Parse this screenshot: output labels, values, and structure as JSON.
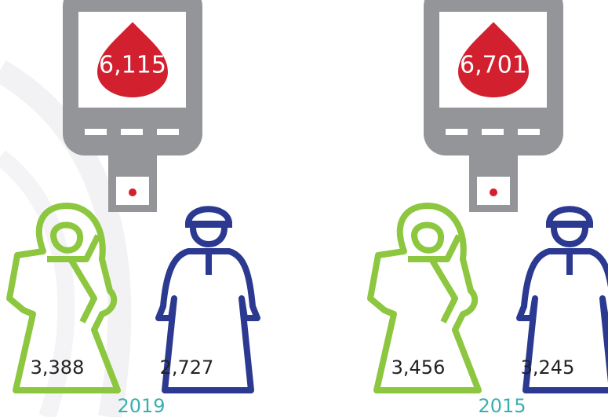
{
  "panels": [
    {
      "year": "2019",
      "total": "6,115",
      "female": "3,388",
      "male": "2,727"
    },
    {
      "year": "2015",
      "total": "6,701",
      "female": "3,456",
      "male": "3,245"
    }
  ]
}
